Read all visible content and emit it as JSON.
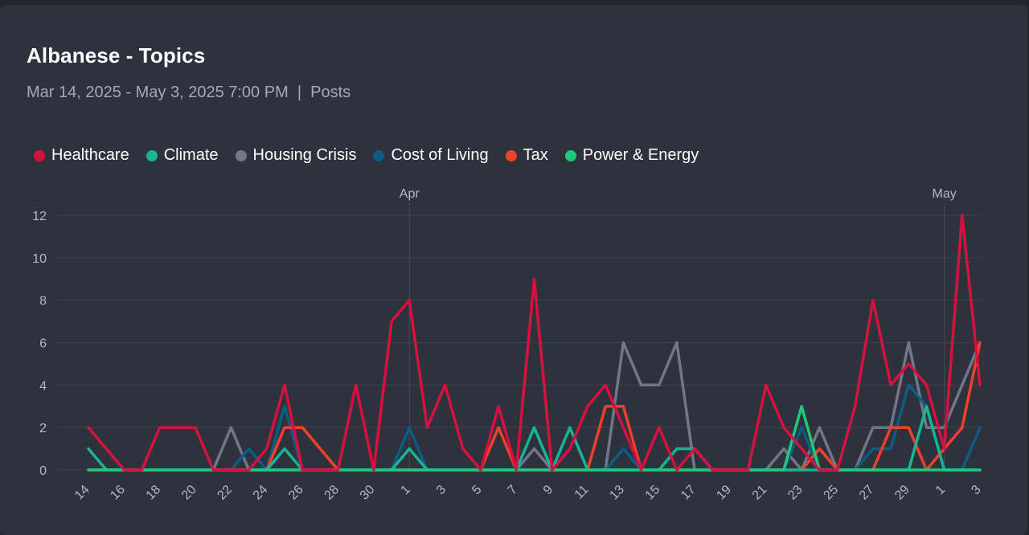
{
  "chart_data": {
    "type": "line",
    "title": "Albanese - Topics",
    "subtitle": "Mar 14, 2025 - May 3, 2025 7:00 PM  |  Posts",
    "x": [
      "14",
      "15",
      "16",
      "17",
      "18",
      "19",
      "20",
      "21",
      "22",
      "23",
      "24",
      "25",
      "26",
      "27",
      "28",
      "29",
      "30",
      "31",
      "1",
      "2",
      "3",
      "4",
      "5",
      "6",
      "7",
      "8",
      "9",
      "10",
      "11",
      "12",
      "13",
      "14",
      "15",
      "16",
      "17",
      "18",
      "19",
      "20",
      "21",
      "22",
      "23",
      "24",
      "25",
      "26",
      "27",
      "28",
      "29",
      "30",
      "1",
      "2",
      "3"
    ],
    "x_tick_labels": [
      "14",
      "16",
      "18",
      "20",
      "22",
      "24",
      "26",
      "28",
      "30",
      "1",
      "3",
      "5",
      "7",
      "9",
      "11",
      "13",
      "15",
      "17",
      "19",
      "21",
      "23",
      "25",
      "27",
      "29",
      "1",
      "3"
    ],
    "month_markers": [
      {
        "label": "Apr",
        "index": 18
      },
      {
        "label": "May",
        "index": 48
      }
    ],
    "ylim": [
      0,
      12
    ],
    "y_ticks": [
      "0",
      "2",
      "4",
      "6",
      "8",
      "10",
      "12"
    ],
    "grid": true,
    "legend_placement": "top-left",
    "series": [
      {
        "name": "Healthcare",
        "color": "#d4113f",
        "values": [
          2,
          1,
          0,
          0,
          2,
          2,
          2,
          0,
          0,
          0,
          1,
          4,
          0,
          0,
          0,
          4,
          0,
          7,
          8,
          2,
          4,
          1,
          0,
          3,
          0,
          9,
          0,
          1,
          3,
          4,
          2,
          0,
          2,
          0,
          1,
          0,
          0,
          0,
          4,
          2,
          1,
          0,
          0,
          3,
          8,
          4,
          5,
          4,
          1,
          12,
          4
        ]
      },
      {
        "name": "Climate",
        "color": "#1ab394",
        "values": [
          1,
          0,
          0,
          0,
          0,
          0,
          0,
          0,
          0,
          0,
          0,
          1,
          0,
          0,
          0,
          0,
          0,
          0,
          1,
          0,
          0,
          0,
          0,
          0,
          0,
          2,
          0,
          2,
          0,
          0,
          0,
          0,
          0,
          1,
          1,
          0,
          0,
          0,
          0,
          0,
          0,
          0,
          0,
          0,
          0,
          0,
          0,
          3,
          0,
          0,
          0
        ]
      },
      {
        "name": "Housing Crisis",
        "color": "#6f7788",
        "values": [
          0,
          0,
          0,
          0,
          0,
          0,
          0,
          0,
          2,
          0,
          0,
          0,
          0,
          0,
          0,
          0,
          0,
          0,
          0,
          0,
          0,
          0,
          0,
          0,
          0,
          1,
          0,
          0,
          0,
          0,
          6,
          4,
          4,
          6,
          0,
          0,
          0,
          0,
          0,
          1,
          0,
          2,
          0,
          0,
          2,
          2,
          6,
          2,
          2,
          4,
          6
        ]
      },
      {
        "name": "Cost of Living",
        "color": "#0d5c84",
        "values": [
          0,
          0,
          0,
          0,
          0,
          0,
          0,
          0,
          0,
          1,
          0,
          3,
          0,
          0,
          0,
          0,
          0,
          0,
          2,
          0,
          0,
          0,
          0,
          0,
          0,
          2,
          0,
          0,
          0,
          0,
          1,
          0,
          0,
          0,
          0,
          0,
          0,
          0,
          0,
          0,
          2,
          0,
          0,
          0,
          1,
          1,
          4,
          3,
          0,
          0,
          2
        ]
      },
      {
        "name": "Tax",
        "color": "#f0402b",
        "values": [
          0,
          0,
          0,
          0,
          0,
          0,
          0,
          0,
          0,
          0,
          0,
          2,
          2,
          1,
          0,
          0,
          0,
          0,
          0,
          0,
          0,
          0,
          0,
          2,
          0,
          0,
          0,
          0,
          0,
          3,
          3,
          0,
          0,
          0,
          0,
          0,
          0,
          0,
          0,
          0,
          0,
          1,
          0,
          0,
          0,
          2,
          2,
          0,
          1,
          2,
          6
        ]
      },
      {
        "name": "Power & Energy",
        "color": "#1ec97a",
        "values": [
          0,
          0,
          0,
          0,
          0,
          0,
          0,
          0,
          0,
          0,
          0,
          0,
          0,
          0,
          0,
          0,
          0,
          0,
          0,
          0,
          0,
          0,
          0,
          0,
          0,
          0,
          0,
          0,
          0,
          0,
          0,
          0,
          0,
          0,
          0,
          0,
          0,
          0,
          0,
          0,
          3,
          0,
          0,
          0,
          0,
          0,
          0,
          0,
          0,
          0,
          0
        ]
      }
    ]
  }
}
